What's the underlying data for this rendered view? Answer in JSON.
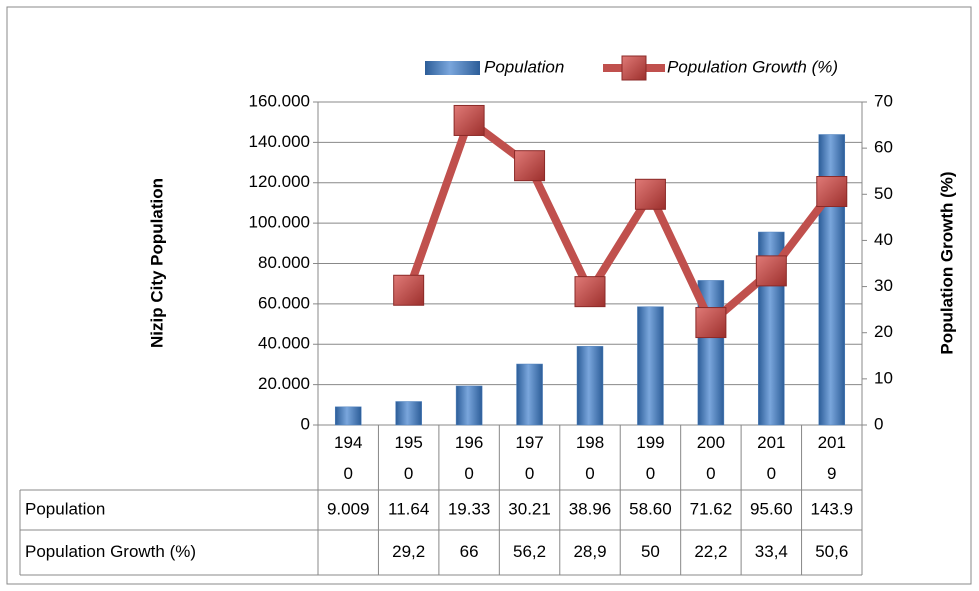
{
  "chart_data": {
    "type": "bar_line",
    "y_label": "Nizip City Population",
    "y2_label": "Population Growth (%)",
    "categories": [
      "1940",
      "1950",
      "1960",
      "1970",
      "1980",
      "1990",
      "2000",
      "2010",
      "2019"
    ],
    "series": [
      {
        "name": "Population",
        "color": "#4f81bd",
        "type": "bar",
        "values": [
          9009,
          11640,
          19330,
          30210,
          38960,
          58600,
          71620,
          95600,
          143900
        ],
        "value_labels": [
          "9.009",
          "11.64",
          "19.33",
          "30.21",
          "38.96",
          "58.60",
          "71.62",
          "95.60",
          "143.9"
        ]
      },
      {
        "name": "Population Growth (%)",
        "color": "#c0504d",
        "type": "line",
        "axis": "y2",
        "values": [
          null,
          29.2,
          66,
          56.2,
          28.9,
          50,
          22.2,
          33.4,
          50.6
        ],
        "value_labels": [
          null,
          "29,2",
          "66",
          "56,2",
          "28,9",
          "50",
          "22,2",
          "33,4",
          "50,6"
        ]
      }
    ],
    "ylim": [
      0,
      160000
    ],
    "yticks": [
      0,
      {
        "value": 20000,
        "label": "20.000"
      },
      {
        "value": 40000,
        "label": "40.000"
      },
      {
        "value": 60000,
        "label": "60.000"
      },
      {
        "value": 80000,
        "label": "80.000"
      },
      {
        "value": 100000,
        "label": "100.000"
      },
      {
        "value": 120000,
        "label": "120.000"
      },
      {
        "value": 140000,
        "label": "140.000"
      },
      {
        "value": 160000,
        "label": "160.000"
      }
    ],
    "y2lim": [
      0,
      70
    ],
    "y2ticks": [
      0,
      10,
      20,
      30,
      40,
      50,
      60,
      70
    ],
    "grid": true,
    "legend": "top"
  }
}
